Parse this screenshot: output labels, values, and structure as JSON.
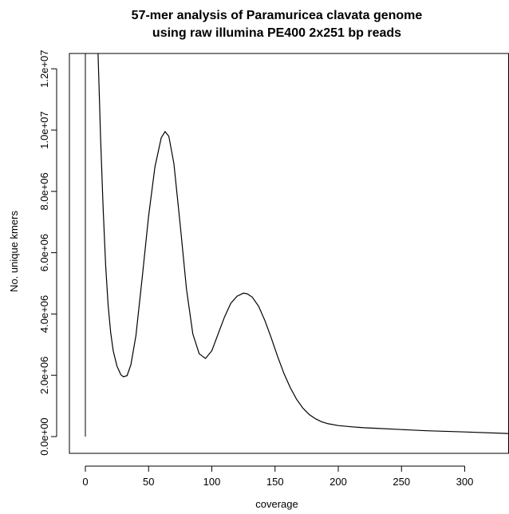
{
  "chart_data": {
    "type": "line",
    "title": "57-mer analysis of Paramuricea clavata genome",
    "subtitle": "using raw illumina PE400 2x251 bp reads",
    "xlabel": "coverage",
    "ylabel": "No. unique kmers",
    "xlim": [
      0,
      335
    ],
    "ylim": [
      0,
      12500000
    ],
    "x_ticks": [
      0,
      50,
      100,
      150,
      200,
      250,
      300
    ],
    "x_tick_labels": [
      "0",
      "50",
      "100",
      "150",
      "200",
      "250",
      "300"
    ],
    "y_ticks": [
      0,
      2000000,
      4000000,
      6000000,
      8000000,
      10000000,
      12000000
    ],
    "y_tick_labels": [
      "0.0e+00",
      "2.0e+06",
      "4.0e+06",
      "6.0e+06",
      "8.0e+06",
      "1.0e+07",
      "1.2e+07"
    ],
    "grid": false,
    "legend": "none",
    "line_color": "#000000",
    "spike": {
      "x": 0,
      "y_from": 0,
      "y_to": 12500000
    },
    "series": [
      {
        "x": [
          10,
          11,
          12,
          14,
          16,
          18,
          20,
          22,
          25,
          28,
          30,
          33,
          36,
          40,
          45,
          50,
          55,
          60,
          63,
          66,
          70,
          75,
          80,
          85,
          90,
          95,
          100,
          105,
          110,
          115,
          120,
          125,
          128,
          132,
          137,
          142,
          147,
          152,
          157,
          162,
          167,
          172,
          177,
          182,
          187,
          192,
          200,
          210,
          220,
          230,
          250,
          270,
          300,
          335
        ],
        "y": [
          12500000,
          11200000,
          9800000,
          7500000,
          5600000,
          4300000,
          3400000,
          2800000,
          2300000,
          2020000,
          1950000,
          1990000,
          2350000,
          3300000,
          5200000,
          7200000,
          8800000,
          9750000,
          9950000,
          9800000,
          8900000,
          6900000,
          4800000,
          3350000,
          2700000,
          2550000,
          2800000,
          3350000,
          3900000,
          4350000,
          4580000,
          4680000,
          4660000,
          4550000,
          4250000,
          3780000,
          3220000,
          2620000,
          2060000,
          1600000,
          1220000,
          930000,
          720000,
          580000,
          480000,
          420000,
          360000,
          320000,
          290000,
          270000,
          230000,
          190000,
          150000,
          100000
        ]
      }
    ]
  }
}
